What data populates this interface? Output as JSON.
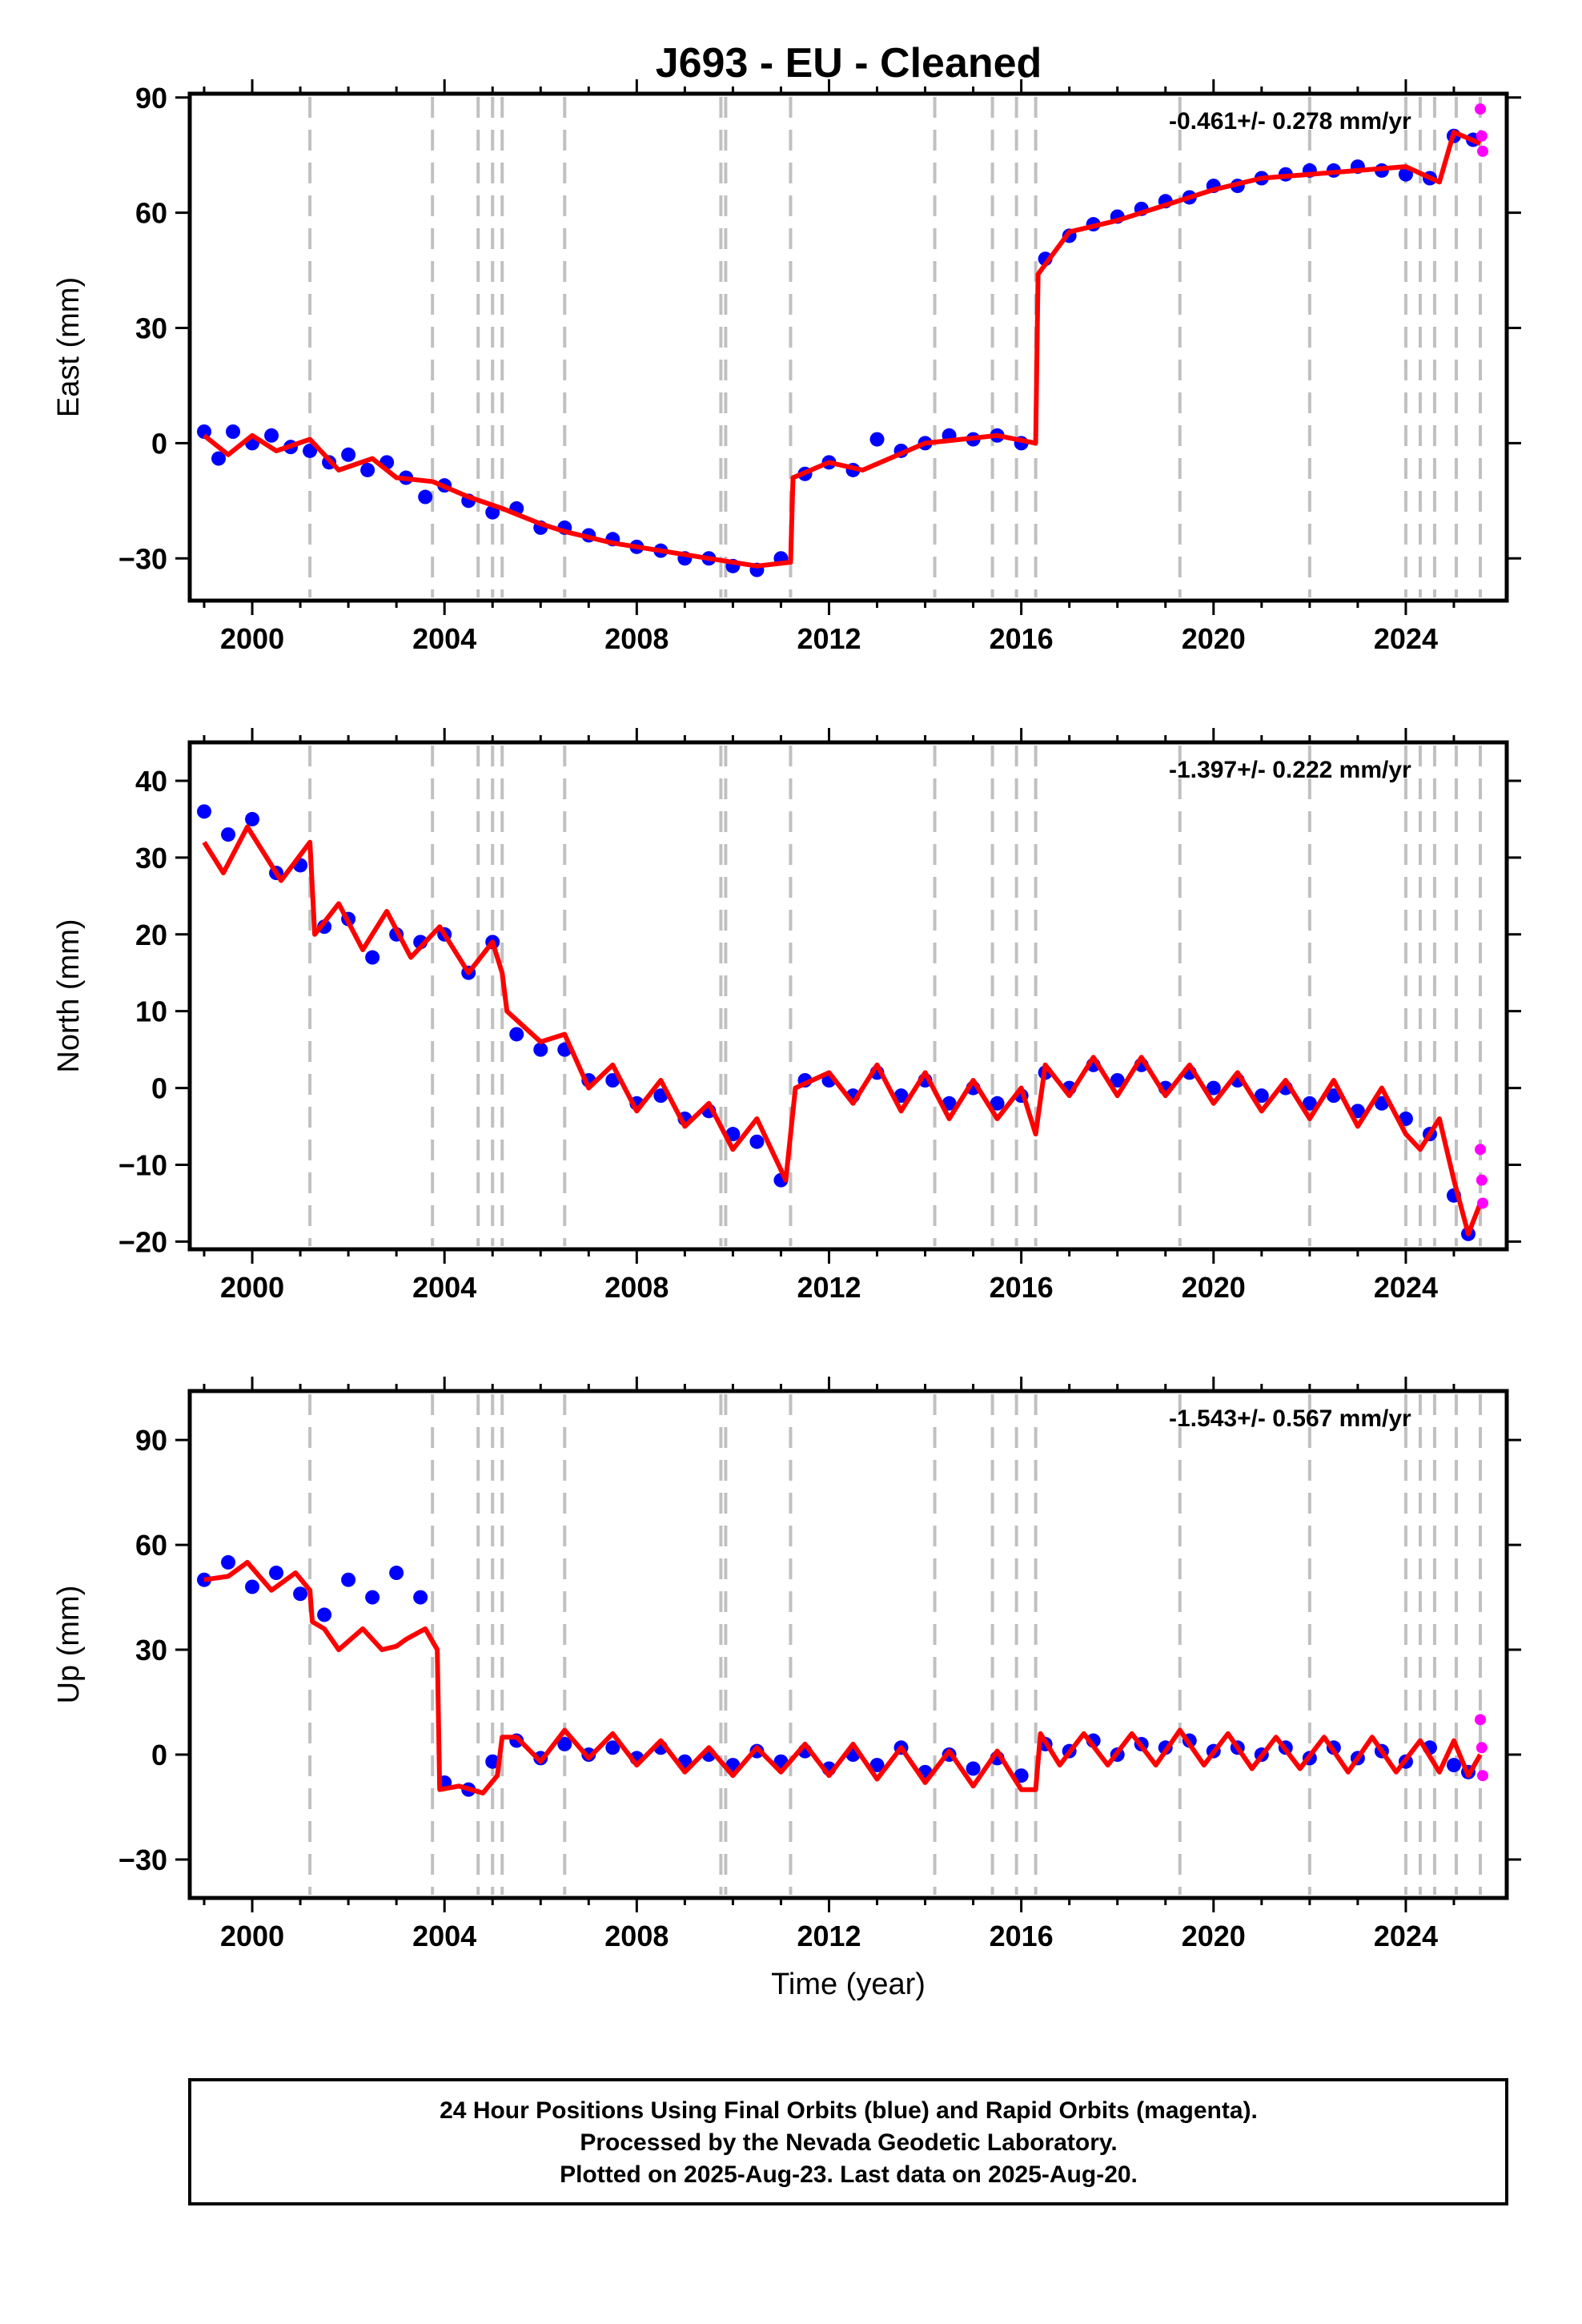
{
  "title": "J693  - EU - Cleaned",
  "footer": {
    "line1": "24 Hour Positions Using Final Orbits (blue) and Rapid Orbits (magenta).",
    "line2": "Processed by the Nevada Geodetic Laboratory.",
    "line3": "Plotted on 2025-Aug-23. Last data on 2025-Aug-20."
  },
  "colors": {
    "final_orbits": "#0000ff",
    "rapid_orbits": "#ff00ff",
    "model": "#ff0000",
    "event_lines": "#c0c0c0"
  },
  "chart_data": [
    {
      "type": "scatter",
      "ylabel": "East (mm)",
      "xlabel": "",
      "xlim": [
        1998.7,
        2026.1
      ],
      "ylim": [
        -41,
        91
      ],
      "xticks": [
        "2000",
        "2004",
        "2008",
        "2012",
        "2016",
        "2020",
        "2024"
      ],
      "yticks": [
        "90",
        "60",
        "30",
        "0",
        "−30"
      ],
      "rate_label": "-0.461+/- 0.278 mm/yr",
      "grid": false,
      "model_x": [
        1999.0,
        1999.5,
        2000.0,
        2000.5,
        2001.2,
        2001.8,
        2002.5,
        2003.0,
        2003.75,
        2004.5,
        2005.2,
        2006.0,
        2006.5,
        2007.5,
        2008.5,
        2009.5,
        2010.5,
        2011.2,
        2011.25,
        2012.0,
        2012.7,
        2014.0,
        2015.5,
        2016.3,
        2016.35,
        2017.0,
        2018.0,
        2019.0,
        2020.0,
        2021.0,
        2022.0,
        2023.0,
        2024.0,
        2024.7,
        2025.0,
        2025.55
      ],
      "model_y": [
        2,
        -3,
        2,
        -2,
        1,
        -7,
        -4,
        -9,
        -10,
        -14,
        -17,
        -21,
        -23,
        -26,
        -28,
        -30,
        -32,
        -31,
        -9,
        -5,
        -7,
        0,
        2,
        0,
        44,
        55,
        58,
        62,
        66,
        69,
        70,
        71,
        72,
        68,
        81,
        78
      ],
      "final_orbits": {
        "x": [
          1999.0,
          1999.3,
          1999.6,
          2000.0,
          2000.4,
          2000.8,
          2001.2,
          2001.6,
          2002.0,
          2002.4,
          2002.8,
          2003.2,
          2003.6,
          2004.0,
          2004.5,
          2005.0,
          2005.5,
          2006.0,
          2006.5,
          2007.0,
          2007.5,
          2008.0,
          2008.5,
          2009.0,
          2009.5,
          2010.0,
          2010.5,
          2011.0,
          2011.5,
          2012.0,
          2012.5,
          2013.0,
          2013.5,
          2014.0,
          2014.5,
          2015.0,
          2015.5,
          2016.0,
          2016.5,
          2017.0,
          2017.5,
          2018.0,
          2018.5,
          2019.0,
          2019.5,
          2020.0,
          2020.5,
          2021.0,
          2021.5,
          2022.0,
          2022.5,
          2023.0,
          2023.5,
          2024.0,
          2024.5,
          2025.0,
          2025.4
        ],
        "y": [
          3,
          -4,
          3,
          0,
          2,
          -1,
          -2,
          -5,
          -3,
          -7,
          -5,
          -9,
          -14,
          -11,
          -15,
          -18,
          -17,
          -22,
          -22,
          -24,
          -25,
          -27,
          -28,
          -30,
          -30,
          -32,
          -33,
          -30,
          -8,
          -5,
          -7,
          1,
          -2,
          0,
          2,
          1,
          2,
          0,
          48,
          54,
          57,
          59,
          61,
          63,
          64,
          67,
          67,
          69,
          70,
          71,
          71,
          72,
          71,
          70,
          69,
          80,
          79
        ]
      },
      "rapid_orbits": {
        "x": [
          2025.55,
          2025.58,
          2025.6
        ],
        "y": [
          87,
          80,
          76
        ]
      }
    },
    {
      "type": "scatter",
      "ylabel": "North (mm)",
      "xlabel": "",
      "xlim": [
        1998.7,
        2026.1
      ],
      "ylim": [
        -21,
        45
      ],
      "xticks": [
        "2000",
        "2004",
        "2008",
        "2012",
        "2016",
        "2020",
        "2024"
      ],
      "yticks": [
        "40",
        "30",
        "20",
        "10",
        "0",
        "−10",
        "−20"
      ],
      "rate_label": "-1.397+/- 0.222 mm/yr",
      "grid": false,
      "model_x": [
        1999.0,
        1999.4,
        1999.9,
        2000.6,
        2001.2,
        2001.3,
        2001.8,
        2002.3,
        2002.8,
        2003.3,
        2003.9,
        2004.5,
        2005.0,
        2005.2,
        2005.3,
        2006.0,
        2006.5,
        2007.0,
        2007.5,
        2008.0,
        2008.5,
        2009.0,
        2009.5,
        2010.0,
        2010.5,
        2011.1,
        2011.3,
        2012.0,
        2012.5,
        2013.0,
        2013.5,
        2014.0,
        2014.5,
        2015.0,
        2015.5,
        2016.0,
        2016.3,
        2016.5,
        2017.0,
        2017.5,
        2018.0,
        2018.5,
        2019.0,
        2019.5,
        2020.0,
        2020.5,
        2021.0,
        2021.5,
        2022.0,
        2022.5,
        2023.0,
        2023.5,
        2024.0,
        2024.3,
        2024.7,
        2025.0,
        2025.3,
        2025.55
      ],
      "model_y": [
        32,
        28,
        34,
        27,
        32,
        20,
        24,
        18,
        23,
        17,
        21,
        15,
        19,
        15,
        10,
        6,
        7,
        0,
        3,
        -3,
        1,
        -5,
        -2,
        -8,
        -4,
        -12,
        0,
        2,
        -2,
        3,
        -3,
        2,
        -4,
        1,
        -4,
        0,
        -6,
        3,
        -1,
        4,
        -1,
        4,
        -1,
        3,
        -2,
        2,
        -3,
        1,
        -4,
        1,
        -5,
        0,
        -6,
        -8,
        -4,
        -12,
        -19,
        -15
      ],
      "final_orbits": {
        "x": [
          1999.0,
          1999.5,
          2000.0,
          2000.5,
          2001.0,
          2001.5,
          2002.0,
          2002.5,
          2003.0,
          2003.5,
          2004.0,
          2004.5,
          2005.0,
          2005.5,
          2006.0,
          2006.5,
          2007.0,
          2007.5,
          2008.0,
          2008.5,
          2009.0,
          2009.5,
          2010.0,
          2010.5,
          2011.0,
          2011.5,
          2012.0,
          2012.5,
          2013.0,
          2013.5,
          2014.0,
          2014.5,
          2015.0,
          2015.5,
          2016.0,
          2016.5,
          2017.0,
          2017.5,
          2018.0,
          2018.5,
          2019.0,
          2019.5,
          2020.0,
          2020.5,
          2021.0,
          2021.5,
          2022.0,
          2022.5,
          2023.0,
          2023.5,
          2024.0,
          2024.5,
          2025.0,
          2025.3
        ],
        "y": [
          36,
          33,
          35,
          28,
          29,
          21,
          22,
          17,
          20,
          19,
          20,
          15,
          19,
          7,
          5,
          5,
          1,
          1,
          -2,
          -1,
          -4,
          -3,
          -6,
          -7,
          -12,
          1,
          1,
          -1,
          2,
          -1,
          1,
          -2,
          0,
          -2,
          -1,
          2,
          0,
          3,
          1,
          3,
          0,
          2,
          0,
          1,
          -1,
          0,
          -2,
          -1,
          -3,
          -2,
          -4,
          -6,
          -14,
          -19
        ]
      },
      "rapid_orbits": {
        "x": [
          2025.55,
          2025.58,
          2025.6
        ],
        "y": [
          -8,
          -12,
          -15
        ]
      }
    },
    {
      "type": "scatter",
      "ylabel": "Up (mm)",
      "xlabel": "Time (year)",
      "xlim": [
        1998.7,
        2026.1
      ],
      "ylim": [
        -41,
        104
      ],
      "xticks": [
        "2000",
        "2004",
        "2008",
        "2012",
        "2016",
        "2020",
        "2024"
      ],
      "yticks": [
        "90",
        "60",
        "30",
        "0",
        "−30"
      ],
      "rate_label": "-1.543+/- 0.567 mm/yr",
      "grid": false,
      "model_x": [
        1999.0,
        1999.5,
        1999.9,
        2000.4,
        2000.9,
        2001.2,
        2001.25,
        2001.5,
        2001.8,
        2002.3,
        2002.7,
        2003.0,
        2003.2,
        2003.6,
        2003.85,
        2003.9,
        2004.3,
        2004.8,
        2005.1,
        2005.2,
        2005.5,
        2006.0,
        2006.5,
        2007.0,
        2007.5,
        2008.0,
        2008.5,
        2009.0,
        2009.5,
        2010.0,
        2010.5,
        2011.0,
        2011.5,
        2012.0,
        2012.5,
        2013.0,
        2013.5,
        2014.0,
        2014.5,
        2015.0,
        2015.5,
        2016.0,
        2016.3,
        2016.4,
        2016.8,
        2017.3,
        2017.8,
        2018.3,
        2018.8,
        2019.3,
        2019.8,
        2020.3,
        2020.8,
        2021.3,
        2021.8,
        2022.3,
        2022.8,
        2023.3,
        2023.8,
        2024.3,
        2024.7,
        2025.0,
        2025.3,
        2025.55
      ],
      "model_y": [
        50,
        51,
        55,
        47,
        52,
        47,
        38,
        36,
        30,
        36,
        30,
        31,
        33,
        36,
        30,
        -10,
        -9,
        -11,
        -6,
        5,
        5,
        -2,
        7,
        -1,
        6,
        -3,
        4,
        -5,
        2,
        -6,
        2,
        -5,
        3,
        -6,
        3,
        -7,
        2,
        -8,
        1,
        -9,
        1,
        -10,
        -10,
        6,
        -3,
        6,
        -3,
        6,
        -3,
        7,
        -3,
        6,
        -4,
        5,
        -4,
        5,
        -5,
        5,
        -5,
        4,
        -5,
        4,
        -6,
        0
      ],
      "final_orbits": {
        "x": [
          1999.0,
          1999.5,
          2000.0,
          2000.5,
          2001.0,
          2001.5,
          2002.0,
          2002.5,
          2003.0,
          2003.5,
          2004.0,
          2004.5,
          2005.0,
          2005.5,
          2006.0,
          2006.5,
          2007.0,
          2007.5,
          2008.0,
          2008.5,
          2009.0,
          2009.5,
          2010.0,
          2010.5,
          2011.0,
          2011.5,
          2012.0,
          2012.5,
          2013.0,
          2013.5,
          2014.0,
          2014.5,
          2015.0,
          2015.5,
          2016.0,
          2016.5,
          2017.0,
          2017.5,
          2018.0,
          2018.5,
          2019.0,
          2019.5,
          2020.0,
          2020.5,
          2021.0,
          2021.5,
          2022.0,
          2022.5,
          2023.0,
          2023.5,
          2024.0,
          2024.5,
          2025.0,
          2025.3
        ],
        "y": [
          50,
          55,
          48,
          52,
          46,
          40,
          50,
          45,
          52,
          45,
          -8,
          -10,
          -2,
          4,
          -1,
          3,
          0,
          2,
          -1,
          2,
          -2,
          0,
          -3,
          1,
          -2,
          1,
          -4,
          0,
          -3,
          2,
          -5,
          0,
          -4,
          -1,
          -6,
          3,
          1,
          4,
          0,
          3,
          2,
          4,
          1,
          2,
          0,
          2,
          -1,
          2,
          -1,
          1,
          -2,
          2,
          -3,
          -5
        ]
      },
      "rapid_orbits": {
        "x": [
          2025.55,
          2025.58,
          2025.6
        ],
        "y": [
          10,
          2,
          -6
        ]
      }
    }
  ],
  "event_years": [
    2001.2,
    2003.75,
    2004.7,
    2005.0,
    2005.2,
    2006.5,
    2009.75,
    2009.85,
    2011.2,
    2014.2,
    2015.4,
    2015.9,
    2016.3,
    2019.3,
    2022.0,
    2024.0,
    2024.3,
    2024.6,
    2025.05,
    2025.55
  ]
}
